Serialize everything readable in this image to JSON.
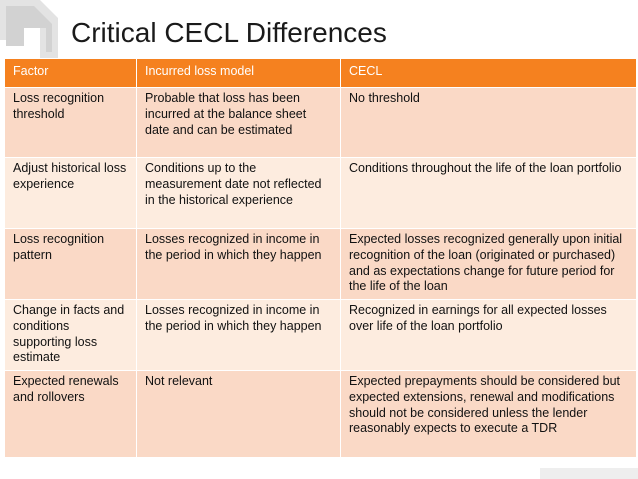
{
  "slide": {
    "title": "Critical CECL Differences"
  },
  "table": {
    "headers": {
      "factor": "Factor",
      "incurred": "Incurred loss model",
      "cecl": "CECL"
    },
    "rows": [
      {
        "factor": "Loss recognition threshold",
        "incurred": "Probable that loss has been incurred at the balance sheet date and can be estimated",
        "cecl": "No threshold"
      },
      {
        "factor": "Adjust historical loss experience",
        "incurred": "Conditions up to the measurement date not reflected in the historical experience",
        "cecl": "Conditions throughout the life of the loan portfolio"
      },
      {
        "factor": "Loss recognition pattern",
        "incurred": "Losses recognized in income in the period in which they happen",
        "cecl": "Expected losses recognized generally upon initial recognition of the loan (originated or purchased) and as expectations change for future period for the life of the loan"
      },
      {
        "factor": "Change in facts and conditions supporting loss estimate",
        "incurred": "Losses recognized in income in the period in which they happen",
        "cecl": "Recognized in earnings for all expected losses over life of the loan portfolio"
      },
      {
        "factor": "Expected renewals and rollovers",
        "incurred": "Not relevant",
        "cecl": "Expected prepayments should be considered but expected extensions, renewal and modifications should not be considered unless the lender reasonably expects to execute a TDR"
      }
    ]
  },
  "logo": {
    "icon": "arrow-logo-icon",
    "color": "#d9d9d9"
  },
  "colors": {
    "header_bg": "#f5811f",
    "header_text": "#ffffff",
    "row_odd_bg": "#fad9c6",
    "row_even_bg": "#fdecdf"
  }
}
